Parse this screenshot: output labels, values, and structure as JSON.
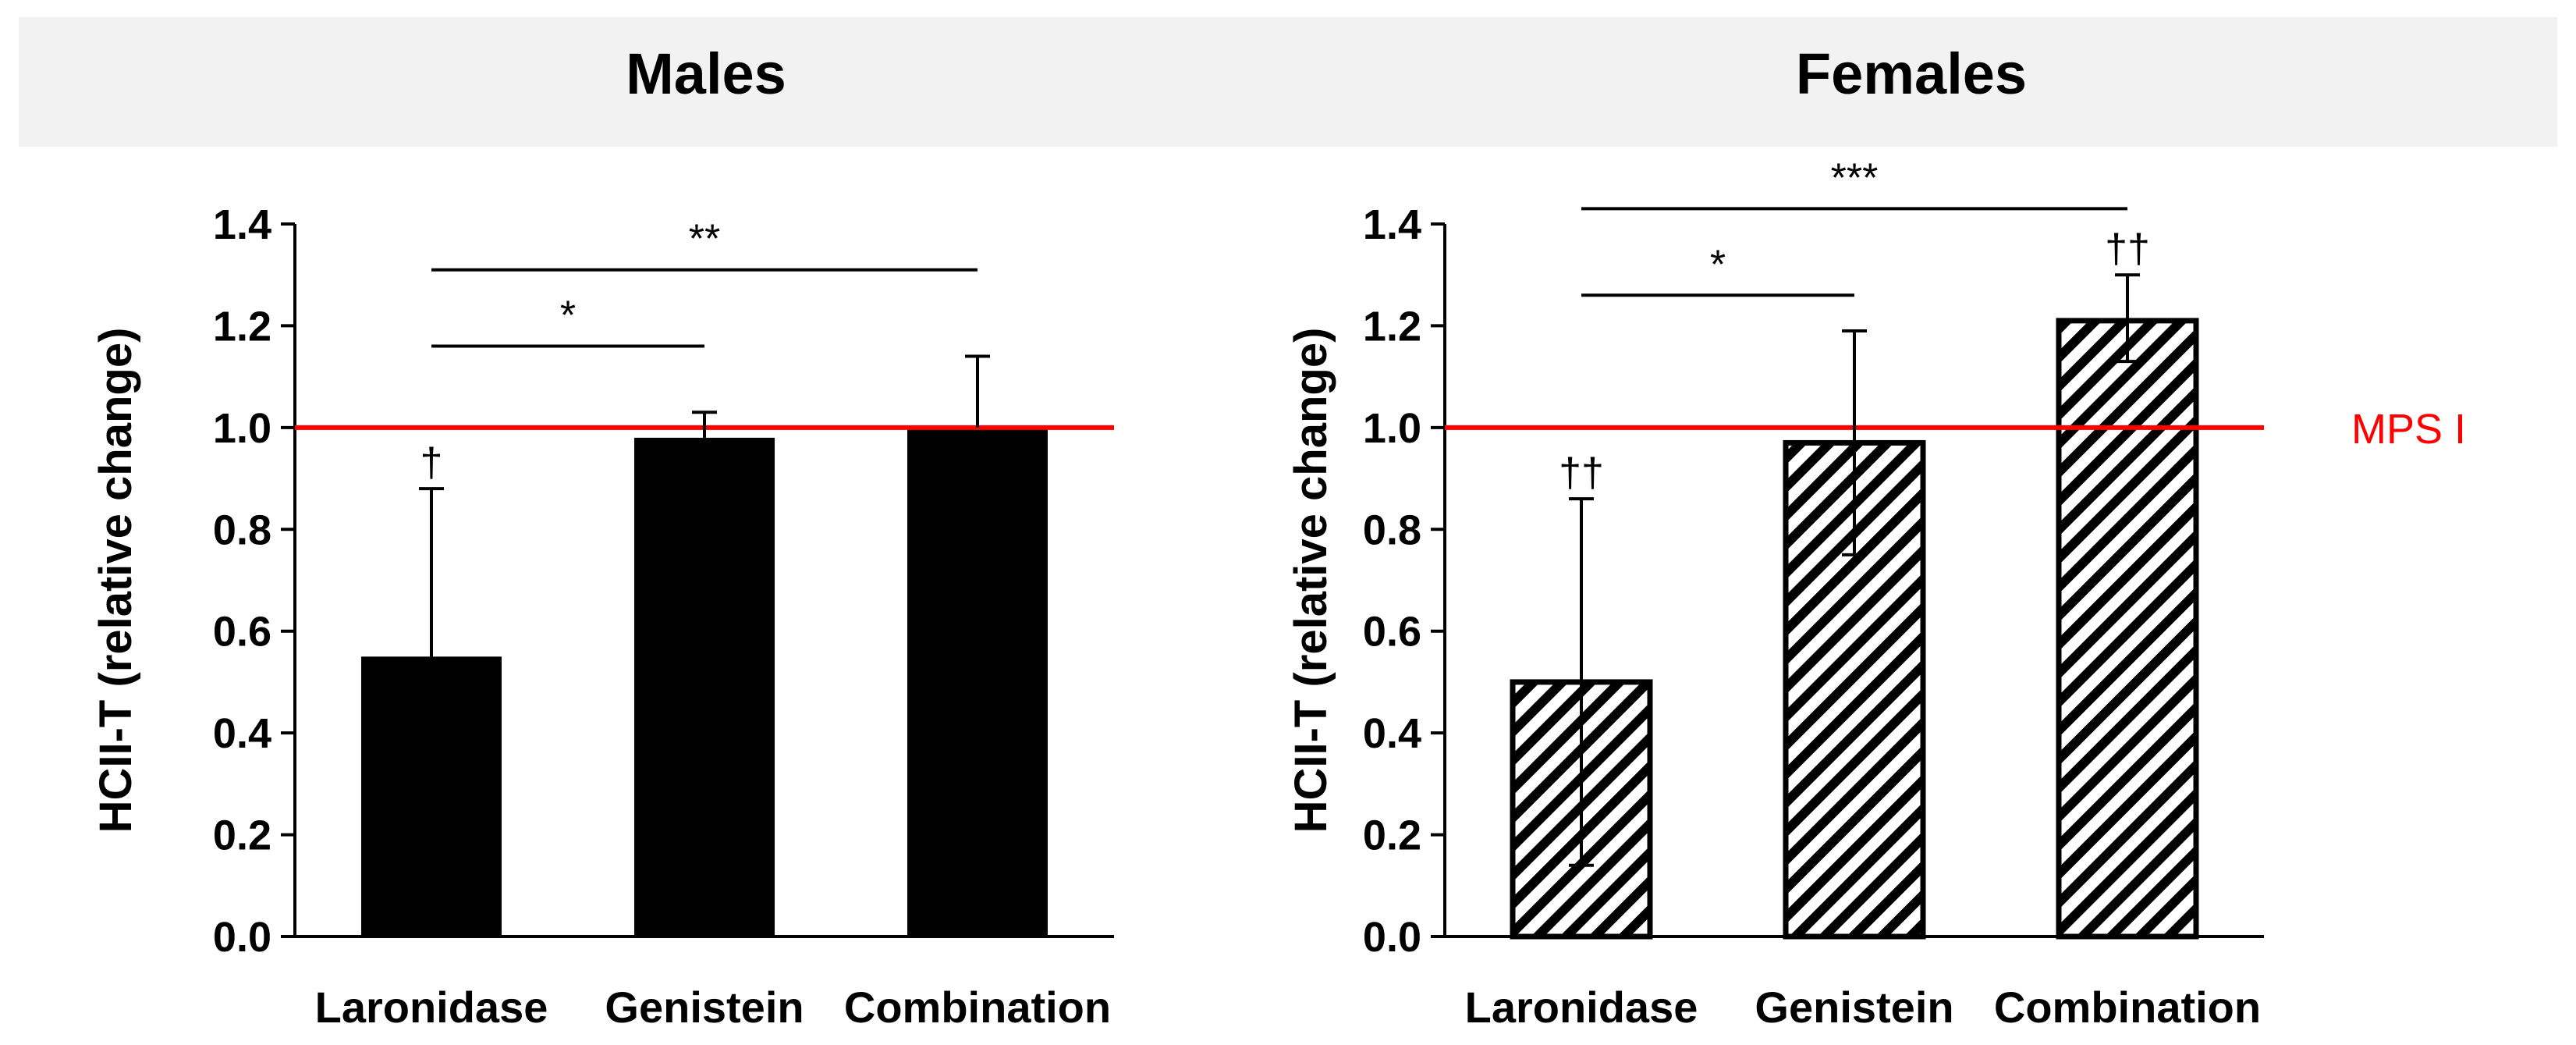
{
  "colors": {
    "male_bar": "#000000",
    "female_hatch": "#000000",
    "reference": "#ff0000",
    "header_bg": "#f2f2f2"
  },
  "chart_data": [
    {
      "type": "bar",
      "panel": "left",
      "title": "Males",
      "ylabel": "HCII-T (relative change)",
      "xlabel": "",
      "ylim": [
        0,
        1.4
      ],
      "yticks": [
        0.0,
        0.2,
        0.4,
        0.6,
        0.8,
        1.0,
        1.2,
        1.4
      ],
      "ytick_labels": [
        "0.0",
        "0.2",
        "0.4",
        "0.6",
        "0.8",
        "1.0",
        "1.2",
        "1.4"
      ],
      "categories": [
        "Laronidase",
        "Genistein",
        "Combination"
      ],
      "values": [
        0.55,
        0.98,
        1.0
      ],
      "error_upper": [
        0.88,
        1.03,
        1.14
      ],
      "error_lower": [
        null,
        null,
        null
      ],
      "bar_style": "solid",
      "bar_annotations": [
        "†",
        "",
        ""
      ],
      "reference_line": {
        "y": 1.0,
        "label": ""
      },
      "significance": [
        {
          "from": 0,
          "to": 1,
          "y": 1.16,
          "label": "*"
        },
        {
          "from": 0,
          "to": 2,
          "y": 1.31,
          "label": "**"
        }
      ]
    },
    {
      "type": "bar",
      "panel": "right",
      "title": "Females",
      "ylabel": "HCII-T (relative change)",
      "xlabel": "",
      "ylim": [
        0,
        1.4
      ],
      "yticks": [
        0.0,
        0.2,
        0.4,
        0.6,
        0.8,
        1.0,
        1.2,
        1.4
      ],
      "ytick_labels": [
        "0.0",
        "0.2",
        "0.4",
        "0.6",
        "0.8",
        "1.0",
        "1.2",
        "1.4"
      ],
      "categories": [
        "Laronidase",
        "Genistein",
        "Combination"
      ],
      "values": [
        0.5,
        0.97,
        1.21
      ],
      "error_upper": [
        0.86,
        1.19,
        1.3
      ],
      "error_lower": [
        0.14,
        0.75,
        1.13
      ],
      "bar_style": "hatched",
      "bar_annotations": [
        "††",
        "",
        "††"
      ],
      "reference_line": {
        "y": 1.0,
        "label": "MPS I"
      },
      "significance": [
        {
          "from": 0,
          "to": 1,
          "y": 1.26,
          "label": "*"
        },
        {
          "from": 0,
          "to": 2,
          "y": 1.43,
          "label": "***"
        }
      ]
    }
  ]
}
